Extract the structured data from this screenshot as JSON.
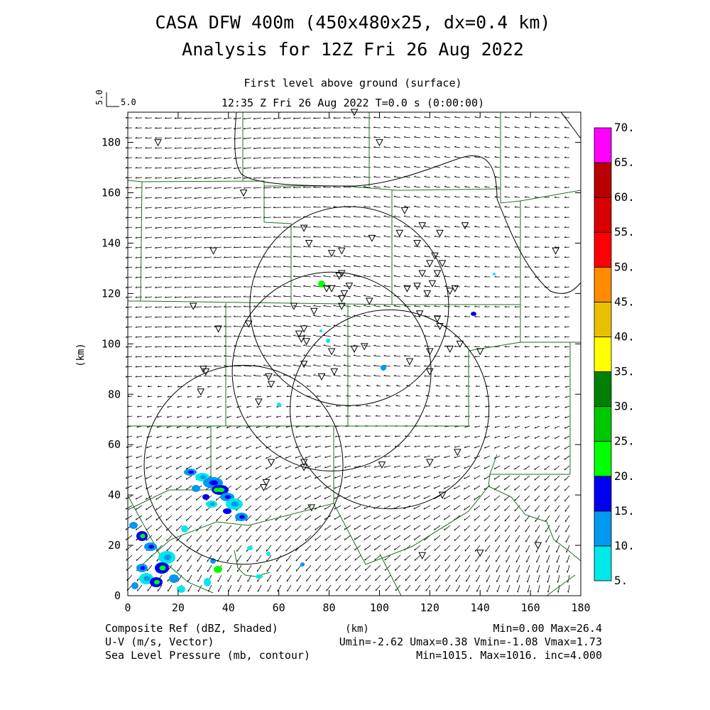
{
  "title": {
    "line1": "CASA DFW 400m (450x480x25, dx=0.4 km)",
    "line2": "Analysis for 12Z Fri 26 Aug 2022"
  },
  "subtitle": {
    "level": "First level above ground (surface)",
    "time": "12:35 Z Fri 26 Aug 2022   T=0.0 s (0:00:00)"
  },
  "vector_scale": {
    "vertical": "5.0",
    "horizontal": "5.0"
  },
  "axes": {
    "xlabel": "(km)",
    "ylabel": "(km)",
    "xticks": [
      "0",
      "20",
      "40",
      "60",
      "80",
      "100",
      "120",
      "140",
      "160",
      "180"
    ],
    "yticks": [
      "0",
      "20",
      "40",
      "60",
      "80",
      "100",
      "120",
      "140",
      "160",
      "180"
    ],
    "xlim": [
      0,
      180
    ],
    "ylim": [
      0,
      192
    ]
  },
  "colorbar": {
    "labels": [
      "5.",
      "10.",
      "15.",
      "20.",
      "25.",
      "30.",
      "35.",
      "40.",
      "45.",
      "50.",
      "55.",
      "60.",
      "65.",
      "70."
    ],
    "colors": [
      "#00e8e8",
      "#0098f0",
      "#0000f0",
      "#00ff00",
      "#00c800",
      "#008000",
      "#ffff00",
      "#e8c000",
      "#ff8c00",
      "#ff0000",
      "#d80000",
      "#b80000",
      "#ff00ff"
    ]
  },
  "footer": {
    "left1": "Composite Ref (dBZ, Shaded)",
    "left2": "U-V (m/s, Vector)",
    "left3": "Sea Level Pressure (mb, contour)",
    "center": "(km)",
    "right1": "Min=0.00 Max=26.4",
    "right2": "Umin=-2.62 Umax=0.38 Vmin=-1.08 Vmax=1.73",
    "right3": "Min=1015. Max=1016. inc=4.000"
  },
  "map": {
    "radar_rings_center_km": [
      [
        88,
        115
      ],
      [
        81,
        89
      ],
      [
        104,
        74
      ],
      [
        46,
        52
      ]
    ],
    "radar_ring_radius_km": 39.5,
    "station_sites_km": [
      [
        12,
        180
      ],
      [
        90,
        192
      ],
      [
        100,
        180
      ],
      [
        46,
        160
      ],
      [
        70,
        146
      ],
      [
        34,
        137
      ],
      [
        72,
        140
      ],
      [
        81,
        136
      ],
      [
        85,
        137
      ],
      [
        97,
        142
      ],
      [
        110,
        153
      ],
      [
        117,
        147
      ],
      [
        108,
        144
      ],
      [
        115,
        140
      ],
      [
        124,
        144
      ],
      [
        122,
        135
      ],
      [
        120,
        132
      ],
      [
        125,
        132
      ],
      [
        117,
        128
      ],
      [
        123,
        128
      ],
      [
        128,
        121
      ],
      [
        130,
        122
      ],
      [
        134,
        147
      ],
      [
        84,
        127
      ],
      [
        85,
        128
      ],
      [
        79,
        122
      ],
      [
        86,
        120
      ],
      [
        85,
        118
      ],
      [
        81,
        122
      ],
      [
        88,
        123
      ],
      [
        115,
        123
      ],
      [
        119,
        120
      ],
      [
        121,
        124
      ],
      [
        111,
        122
      ],
      [
        74,
        113
      ],
      [
        85,
        115
      ],
      [
        66,
        115
      ],
      [
        96,
        117
      ],
      [
        116,
        112
      ],
      [
        123,
        110
      ],
      [
        124,
        107
      ],
      [
        26,
        115
      ],
      [
        36,
        106
      ],
      [
        48,
        108
      ],
      [
        68,
        104
      ],
      [
        69,
        102
      ],
      [
        70,
        106
      ],
      [
        71,
        101
      ],
      [
        81,
        97
      ],
      [
        90,
        98
      ],
      [
        94,
        99
      ],
      [
        112,
        93
      ],
      [
        120,
        97
      ],
      [
        128,
        98
      ],
      [
        132,
        100
      ],
      [
        140,
        97
      ],
      [
        170,
        137
      ],
      [
        30,
        90
      ],
      [
        31,
        89
      ],
      [
        29,
        81
      ],
      [
        56,
        87
      ],
      [
        57,
        84
      ],
      [
        52,
        77
      ],
      [
        70,
        92
      ],
      [
        77,
        87
      ],
      [
        82,
        89
      ],
      [
        120,
        89
      ],
      [
        57,
        53
      ],
      [
        70,
        53
      ],
      [
        70,
        51
      ],
      [
        54,
        43
      ],
      [
        55,
        45
      ],
      [
        73,
        35
      ],
      [
        101,
        52
      ],
      [
        120,
        53
      ],
      [
        131,
        57
      ],
      [
        125,
        40
      ],
      [
        117,
        16
      ],
      [
        140,
        17
      ],
      [
        163,
        20
      ]
    ],
    "surface_pressure_label": ""
  }
}
